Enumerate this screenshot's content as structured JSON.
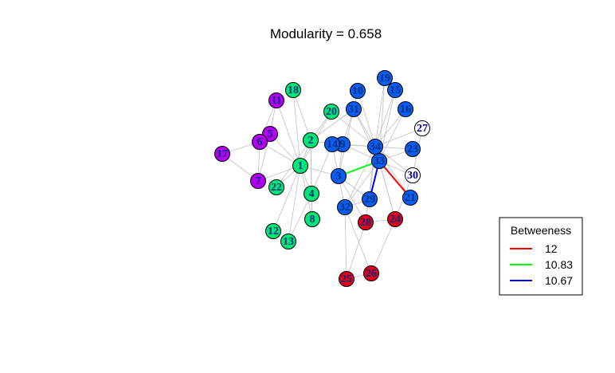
{
  "title": "Modularity =  0.658",
  "graph": {
    "colors": {
      "green": "#00e676",
      "purple": "#b000ee",
      "blue": "#0b5cf0",
      "red": "#e0001a",
      "white": "#ffffff",
      "edge": "#c0c0c0"
    },
    "nodes": [
      {
        "id": "1",
        "group": "green"
      },
      {
        "id": "2",
        "group": "green"
      },
      {
        "id": "4",
        "group": "green"
      },
      {
        "id": "8",
        "group": "green"
      },
      {
        "id": "12",
        "group": "green"
      },
      {
        "id": "13",
        "group": "green"
      },
      {
        "id": "18",
        "group": "green"
      },
      {
        "id": "20",
        "group": "green"
      },
      {
        "id": "22",
        "group": "green"
      },
      {
        "id": "5",
        "group": "purple"
      },
      {
        "id": "6",
        "group": "purple"
      },
      {
        "id": "7",
        "group": "purple"
      },
      {
        "id": "11",
        "group": "purple"
      },
      {
        "id": "17",
        "group": "purple"
      },
      {
        "id": "3",
        "group": "blue"
      },
      {
        "id": "9",
        "group": "blue"
      },
      {
        "id": "10",
        "group": "blue"
      },
      {
        "id": "14",
        "group": "blue"
      },
      {
        "id": "15",
        "group": "blue"
      },
      {
        "id": "16",
        "group": "blue"
      },
      {
        "id": "19",
        "group": "blue"
      },
      {
        "id": "21",
        "group": "blue"
      },
      {
        "id": "23",
        "group": "blue"
      },
      {
        "id": "29",
        "group": "blue"
      },
      {
        "id": "31",
        "group": "blue"
      },
      {
        "id": "32",
        "group": "blue"
      },
      {
        "id": "33",
        "group": "blue"
      },
      {
        "id": "34",
        "group": "blue"
      },
      {
        "id": "24",
        "group": "red"
      },
      {
        "id": "25",
        "group": "red"
      },
      {
        "id": "26",
        "group": "red"
      },
      {
        "id": "28",
        "group": "red"
      },
      {
        "id": "27",
        "group": "white"
      },
      {
        "id": "30",
        "group": "white"
      }
    ],
    "edges": [
      [
        "1",
        "2"
      ],
      [
        "1",
        "4"
      ],
      [
        "1",
        "8"
      ],
      [
        "1",
        "12"
      ],
      [
        "1",
        "13"
      ],
      [
        "1",
        "18"
      ],
      [
        "1",
        "20"
      ],
      [
        "1",
        "22"
      ],
      [
        "1",
        "3"
      ],
      [
        "1",
        "5"
      ],
      [
        "1",
        "6"
      ],
      [
        "1",
        "7"
      ],
      [
        "1",
        "11"
      ],
      [
        "2",
        "4"
      ],
      [
        "2",
        "8"
      ],
      [
        "2",
        "18"
      ],
      [
        "2",
        "20"
      ],
      [
        "2",
        "22"
      ],
      [
        "2",
        "31"
      ],
      [
        "2",
        "14"
      ],
      [
        "4",
        "8"
      ],
      [
        "4",
        "13"
      ],
      [
        "4",
        "14"
      ],
      [
        "5",
        "7"
      ],
      [
        "5",
        "11"
      ],
      [
        "6",
        "7"
      ],
      [
        "6",
        "11"
      ],
      [
        "6",
        "17"
      ],
      [
        "7",
        "17"
      ],
      [
        "3",
        "33"
      ],
      [
        "3",
        "9"
      ],
      [
        "3",
        "10"
      ],
      [
        "3",
        "14"
      ],
      [
        "3",
        "28"
      ],
      [
        "3",
        "29"
      ],
      [
        "3",
        "32"
      ],
      [
        "9",
        "31"
      ],
      [
        "9",
        "33"
      ],
      [
        "9",
        "34"
      ],
      [
        "10",
        "34"
      ],
      [
        "14",
        "34"
      ],
      [
        "15",
        "33"
      ],
      [
        "15",
        "34"
      ],
      [
        "16",
        "33"
      ],
      [
        "16",
        "34"
      ],
      [
        "19",
        "33"
      ],
      [
        "19",
        "34"
      ],
      [
        "20",
        "34"
      ],
      [
        "21",
        "33"
      ],
      [
        "21",
        "34"
      ],
      [
        "23",
        "33"
      ],
      [
        "23",
        "34"
      ],
      [
        "27",
        "30"
      ],
      [
        "27",
        "34"
      ],
      [
        "29",
        "32"
      ],
      [
        "29",
        "34"
      ],
      [
        "30",
        "33"
      ],
      [
        "30",
        "34"
      ],
      [
        "31",
        "33"
      ],
      [
        "31",
        "34"
      ],
      [
        "32",
        "33"
      ],
      [
        "32",
        "34"
      ],
      [
        "24",
        "26"
      ],
      [
        "24",
        "28"
      ],
      [
        "24",
        "30"
      ],
      [
        "24",
        "33"
      ],
      [
        "24",
        "34"
      ],
      [
        "25",
        "26"
      ],
      [
        "25",
        "28"
      ],
      [
        "25",
        "32"
      ],
      [
        "26",
        "32"
      ],
      [
        "28",
        "34"
      ],
      [
        "33",
        "34"
      ]
    ],
    "highlighted_edges": [
      {
        "from": "33",
        "to": "21",
        "color": "red"
      },
      {
        "from": "33",
        "to": "3",
        "color": "green"
      },
      {
        "from": "33",
        "to": "29",
        "color": "blue"
      }
    ]
  },
  "legend": {
    "title": "Betweeness",
    "items": [
      {
        "label": "12",
        "color": "#ff0000"
      },
      {
        "label": "10.83",
        "color": "#00ff00"
      },
      {
        "label": "10.67",
        "color": "#0000ff"
      }
    ]
  }
}
